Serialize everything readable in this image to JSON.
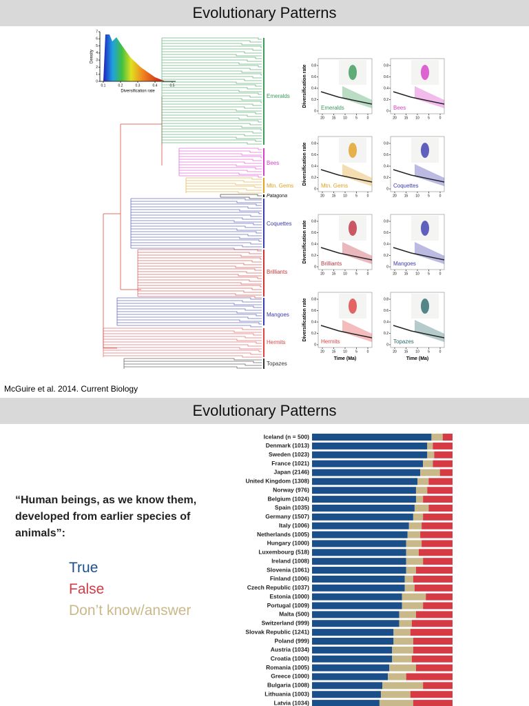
{
  "slide1": {
    "title": "Evolutionary Patterns",
    "citation": "McGuire et al. 2014. Current Biology",
    "inset": {
      "ylabel": "Density",
      "xlabel": "Diversification rate",
      "yticks": [
        0,
        1,
        2,
        3,
        4,
        5,
        6,
        7
      ],
      "xticks": [
        0.1,
        0.2,
        0.3,
        0.4,
        0.5
      ]
    },
    "clades": [
      {
        "label": "Emeralds",
        "color": "#3a9a5a"
      },
      {
        "label": "Bees",
        "color": "#d63fc8"
      },
      {
        "label": "Mtn. Gems",
        "color": "#e0a020"
      },
      {
        "label": "Patagona",
        "color": "#111111"
      },
      {
        "label": "Coquettes",
        "color": "#3a3ab0"
      },
      {
        "label": "Brilliants",
        "color": "#d03030"
      },
      {
        "label": "Mangoes",
        "color": "#3a3ab0"
      },
      {
        "label": "Hermits",
        "color": "#e04040"
      },
      {
        "label": "Topazes",
        "color": "#333333"
      }
    ],
    "panels": [
      {
        "label": "Emeralds",
        "color": "#3a9a5a"
      },
      {
        "label": "Bees",
        "color": "#d63fc8"
      },
      {
        "label": "Mtn. Gems",
        "color": "#e0a020"
      },
      {
        "label": "Coquettes",
        "color": "#3a3ab0"
      },
      {
        "label": "Brilliants",
        "color": "#c03040"
      },
      {
        "label": "Mangoes",
        "color": "#3a3ab0"
      },
      {
        "label": "Hermits",
        "color": "#e04040"
      },
      {
        "label": "Topazes",
        "color": "#2a6a6a"
      }
    ],
    "panel_ylabel": "Diversification rate",
    "panel_xlabel": "Time (Ma)",
    "panel_yticks": [
      0.8,
      0.6,
      0.4,
      0.2,
      0.0
    ],
    "panel_xticks": [
      20,
      15,
      10,
      5,
      0
    ]
  },
  "slide2": {
    "title": "Evolutionary Patterns",
    "question": "“Human beings, as we know them, developed from earlier species of animals”:"
  },
  "chart_data": {
    "type": "bar",
    "orientation": "horizontal",
    "stacked": true,
    "xlim": [
      0,
      100
    ],
    "categories": [
      "Iceland (n = 500)",
      "Denmark (1013)",
      "Sweden (1023)",
      "France (1021)",
      "Japan (2146)",
      "United Kingdom (1308)",
      "Norway (976)",
      "Belgium (1024)",
      "Spain (1035)",
      "Germany (1507)",
      "Italy (1006)",
      "Netherlands (1005)",
      "Hungary (1000)",
      "Luxembourg (518)",
      "Ireland (1008)",
      "Slovenia (1061)",
      "Finland (1006)",
      "Czech Republic (1037)",
      "Estonia (1000)",
      "Portugal (1009)",
      "Malta (500)",
      "Switzerland (999)",
      "Slovak Republic (1241)",
      "Poland (999)",
      "Austria (1034)",
      "Croatia (1000)",
      "Romania (1005)",
      "Greece (1000)",
      "Bulgaria (1008)",
      "Lithuania (1003)",
      "Latvia (1034)"
    ],
    "series": [
      {
        "name": "True",
        "color": "#1a4f8a",
        "values": [
          85,
          82,
          82,
          79,
          77,
          75,
          74,
          74,
          73,
          72,
          69,
          68,
          67,
          67,
          67,
          67,
          66,
          66,
          64,
          64,
          62,
          62,
          58,
          58,
          57,
          57,
          55,
          54,
          50,
          49,
          48
        ]
      },
      {
        "name": "False",
        "color": "#d63a44",
        "values": [
          7,
          14,
          13,
          14,
          9,
          17,
          18,
          21,
          17,
          21,
          22,
          23,
          22,
          24,
          21,
          26,
          28,
          27,
          19,
          21,
          26,
          29,
          30,
          28,
          28,
          29,
          26,
          33,
          21,
          30,
          28
        ]
      },
      {
        "name": "Don’t know/answer",
        "color": "#c9b98a",
        "values": [
          8,
          4,
          5,
          7,
          14,
          8,
          8,
          5,
          10,
          7,
          9,
          9,
          11,
          9,
          12,
          7,
          6,
          7,
          17,
          15,
          12,
          9,
          12,
          14,
          15,
          14,
          19,
          13,
          29,
          21,
          24
        ]
      }
    ]
  }
}
